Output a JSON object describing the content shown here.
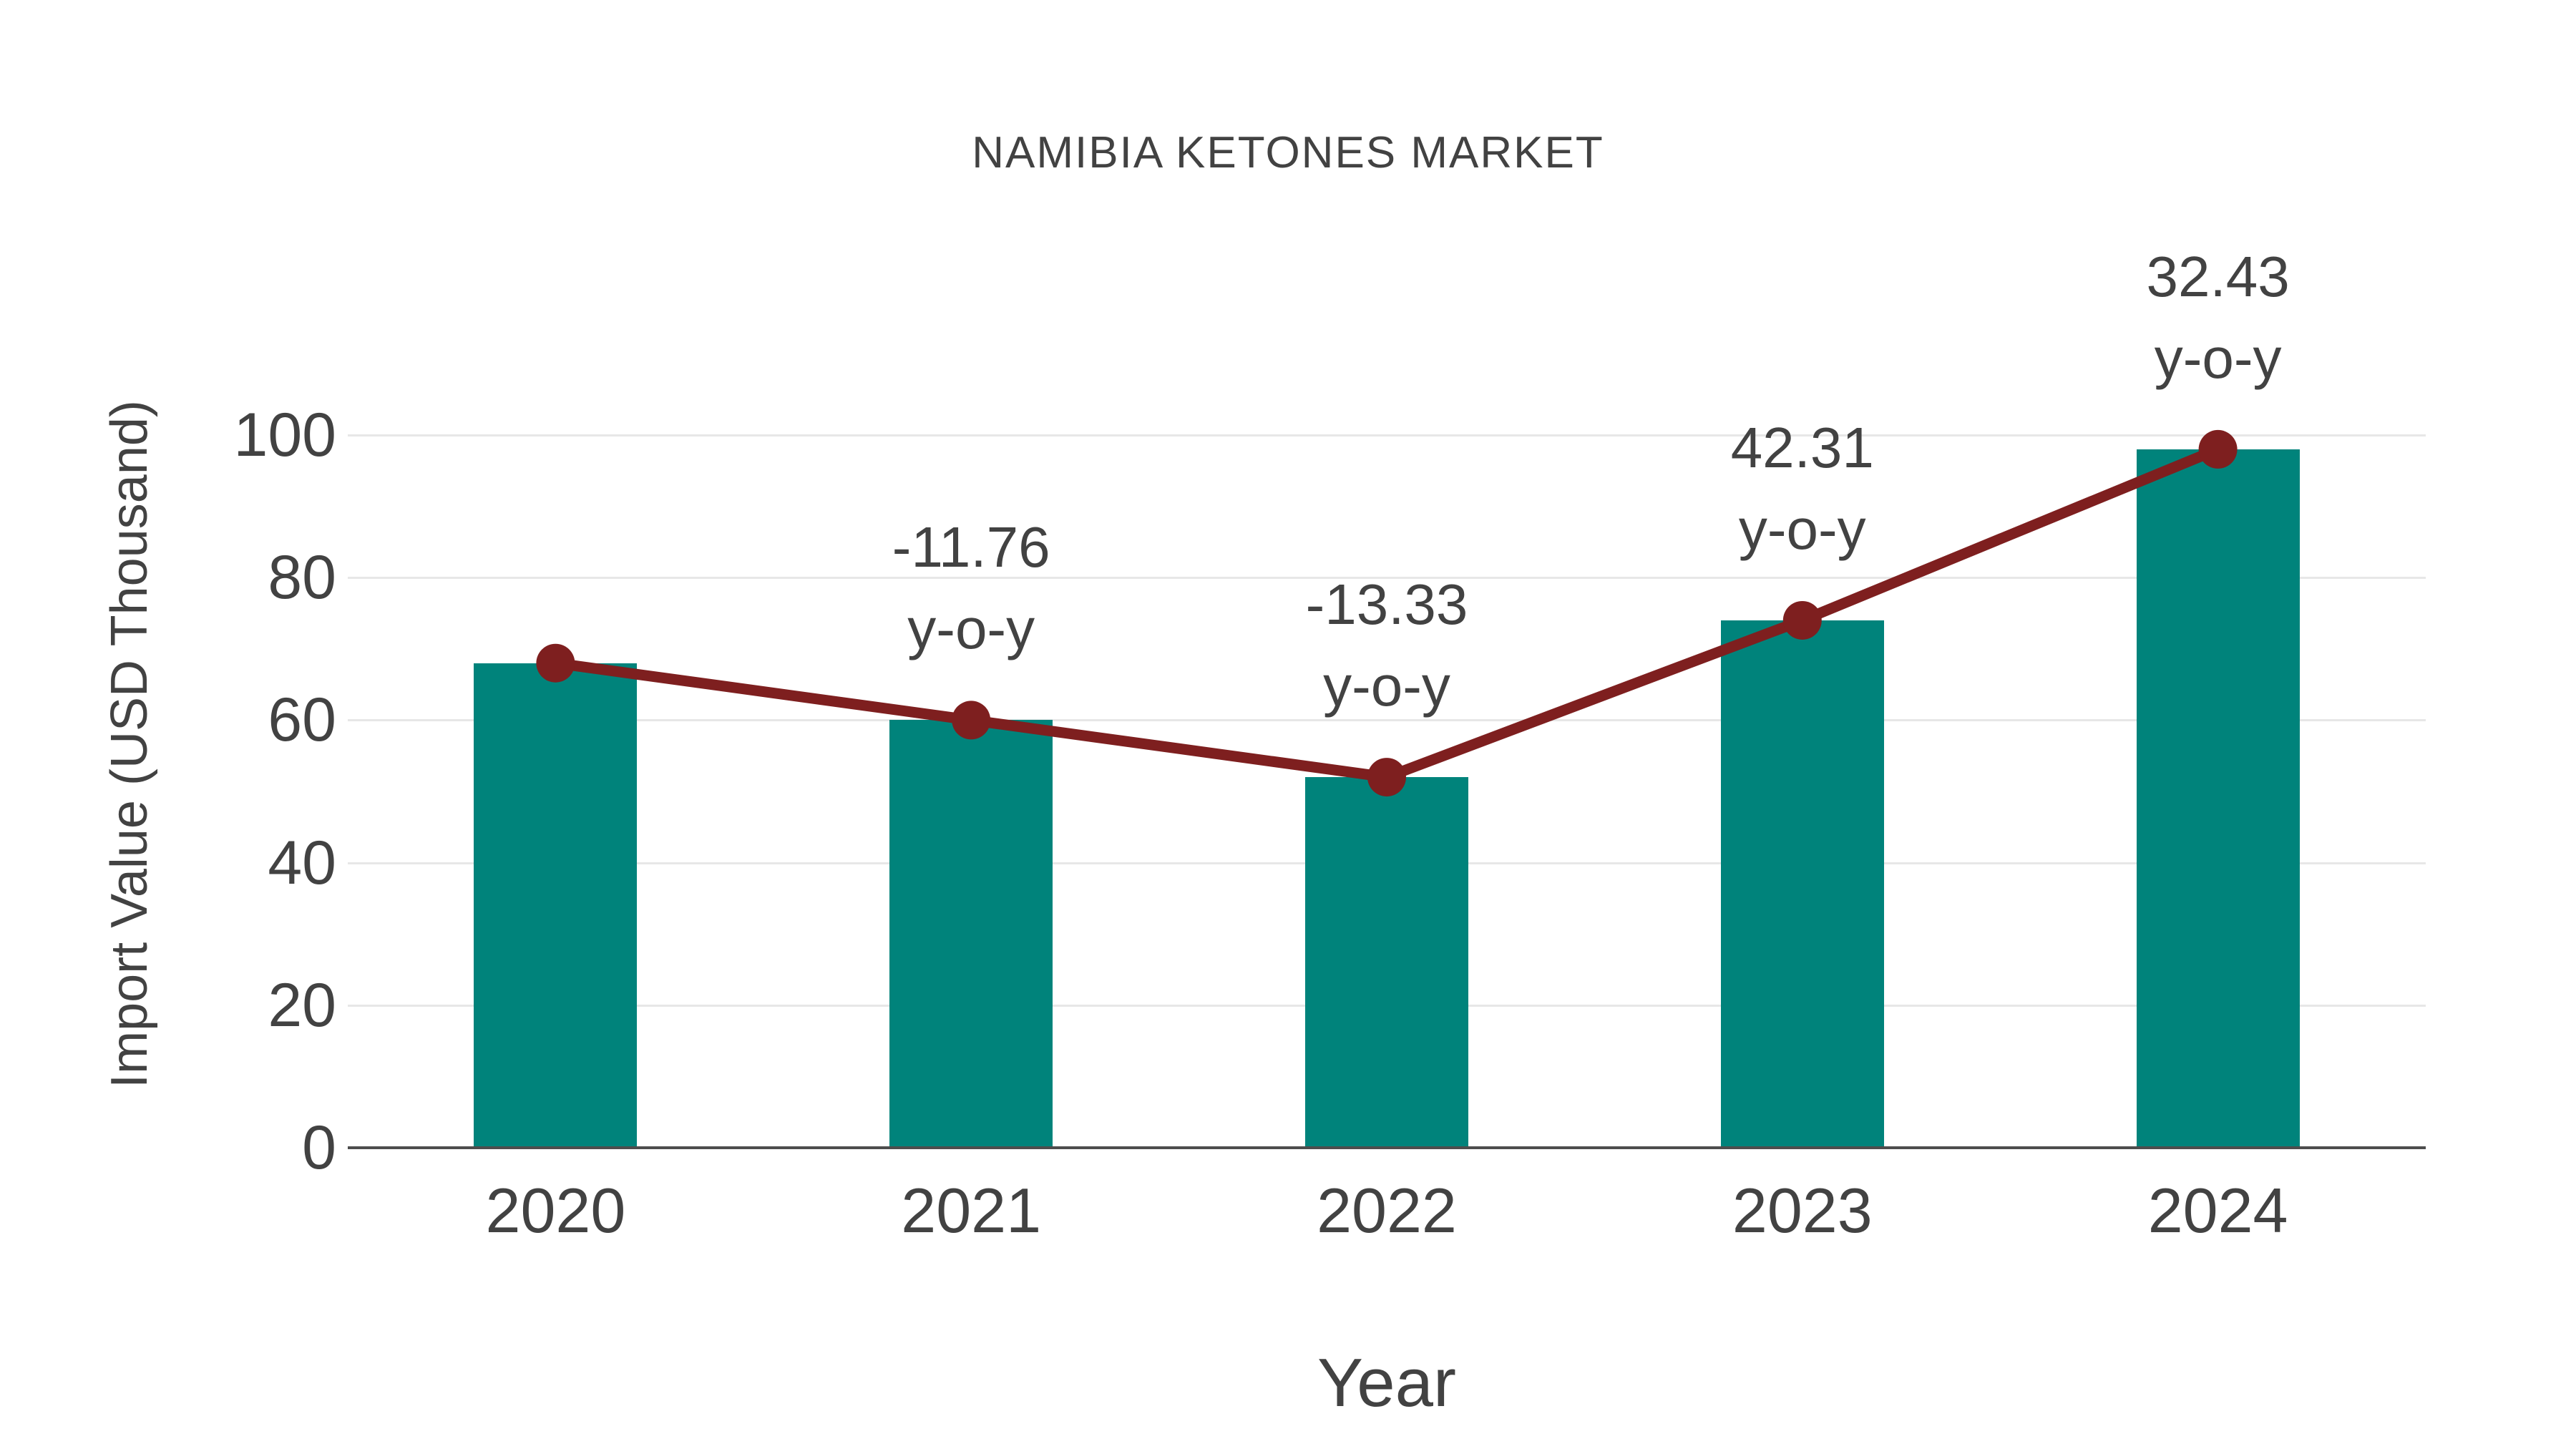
{
  "chart_data": {
    "type": "bar",
    "title": "NAMIBIA KETONES MARKET",
    "xlabel": "Year",
    "ylabel": "Import Value (USD Thousand)",
    "categories": [
      "2020",
      "2021",
      "2022",
      "2023",
      "2024"
    ],
    "series": [
      {
        "name": "Import Value (USD Thousand)",
        "type": "bar",
        "values": [
          68,
          60,
          52,
          74,
          98
        ],
        "color": "#00837b"
      },
      {
        "name": "Year-over-year trend",
        "type": "line",
        "values": [
          68,
          60,
          52,
          74,
          98
        ],
        "color": "#7e1f1f"
      }
    ],
    "annotations": [
      {
        "category": "2021",
        "value_label": "-11.76",
        "suffix": "y-o-y"
      },
      {
        "category": "2022",
        "value_label": "-13.33",
        "suffix": "y-o-y"
      },
      {
        "category": "2023",
        "value_label": "42.31",
        "suffix": "y-o-y"
      },
      {
        "category": "2024",
        "value_label": "32.43",
        "suffix": "y-o-y"
      }
    ],
    "ylim": [
      0,
      100
    ],
    "yticks": [
      0,
      20,
      40,
      60,
      80,
      100
    ],
    "grid": true,
    "legend_position": "none",
    "colors": {
      "bar": "#00837b",
      "line": "#7e1f1f",
      "text": "#424242",
      "grid": "#e7e7e7",
      "axis": "#4d4d4d",
      "background": "#ffffff"
    }
  }
}
